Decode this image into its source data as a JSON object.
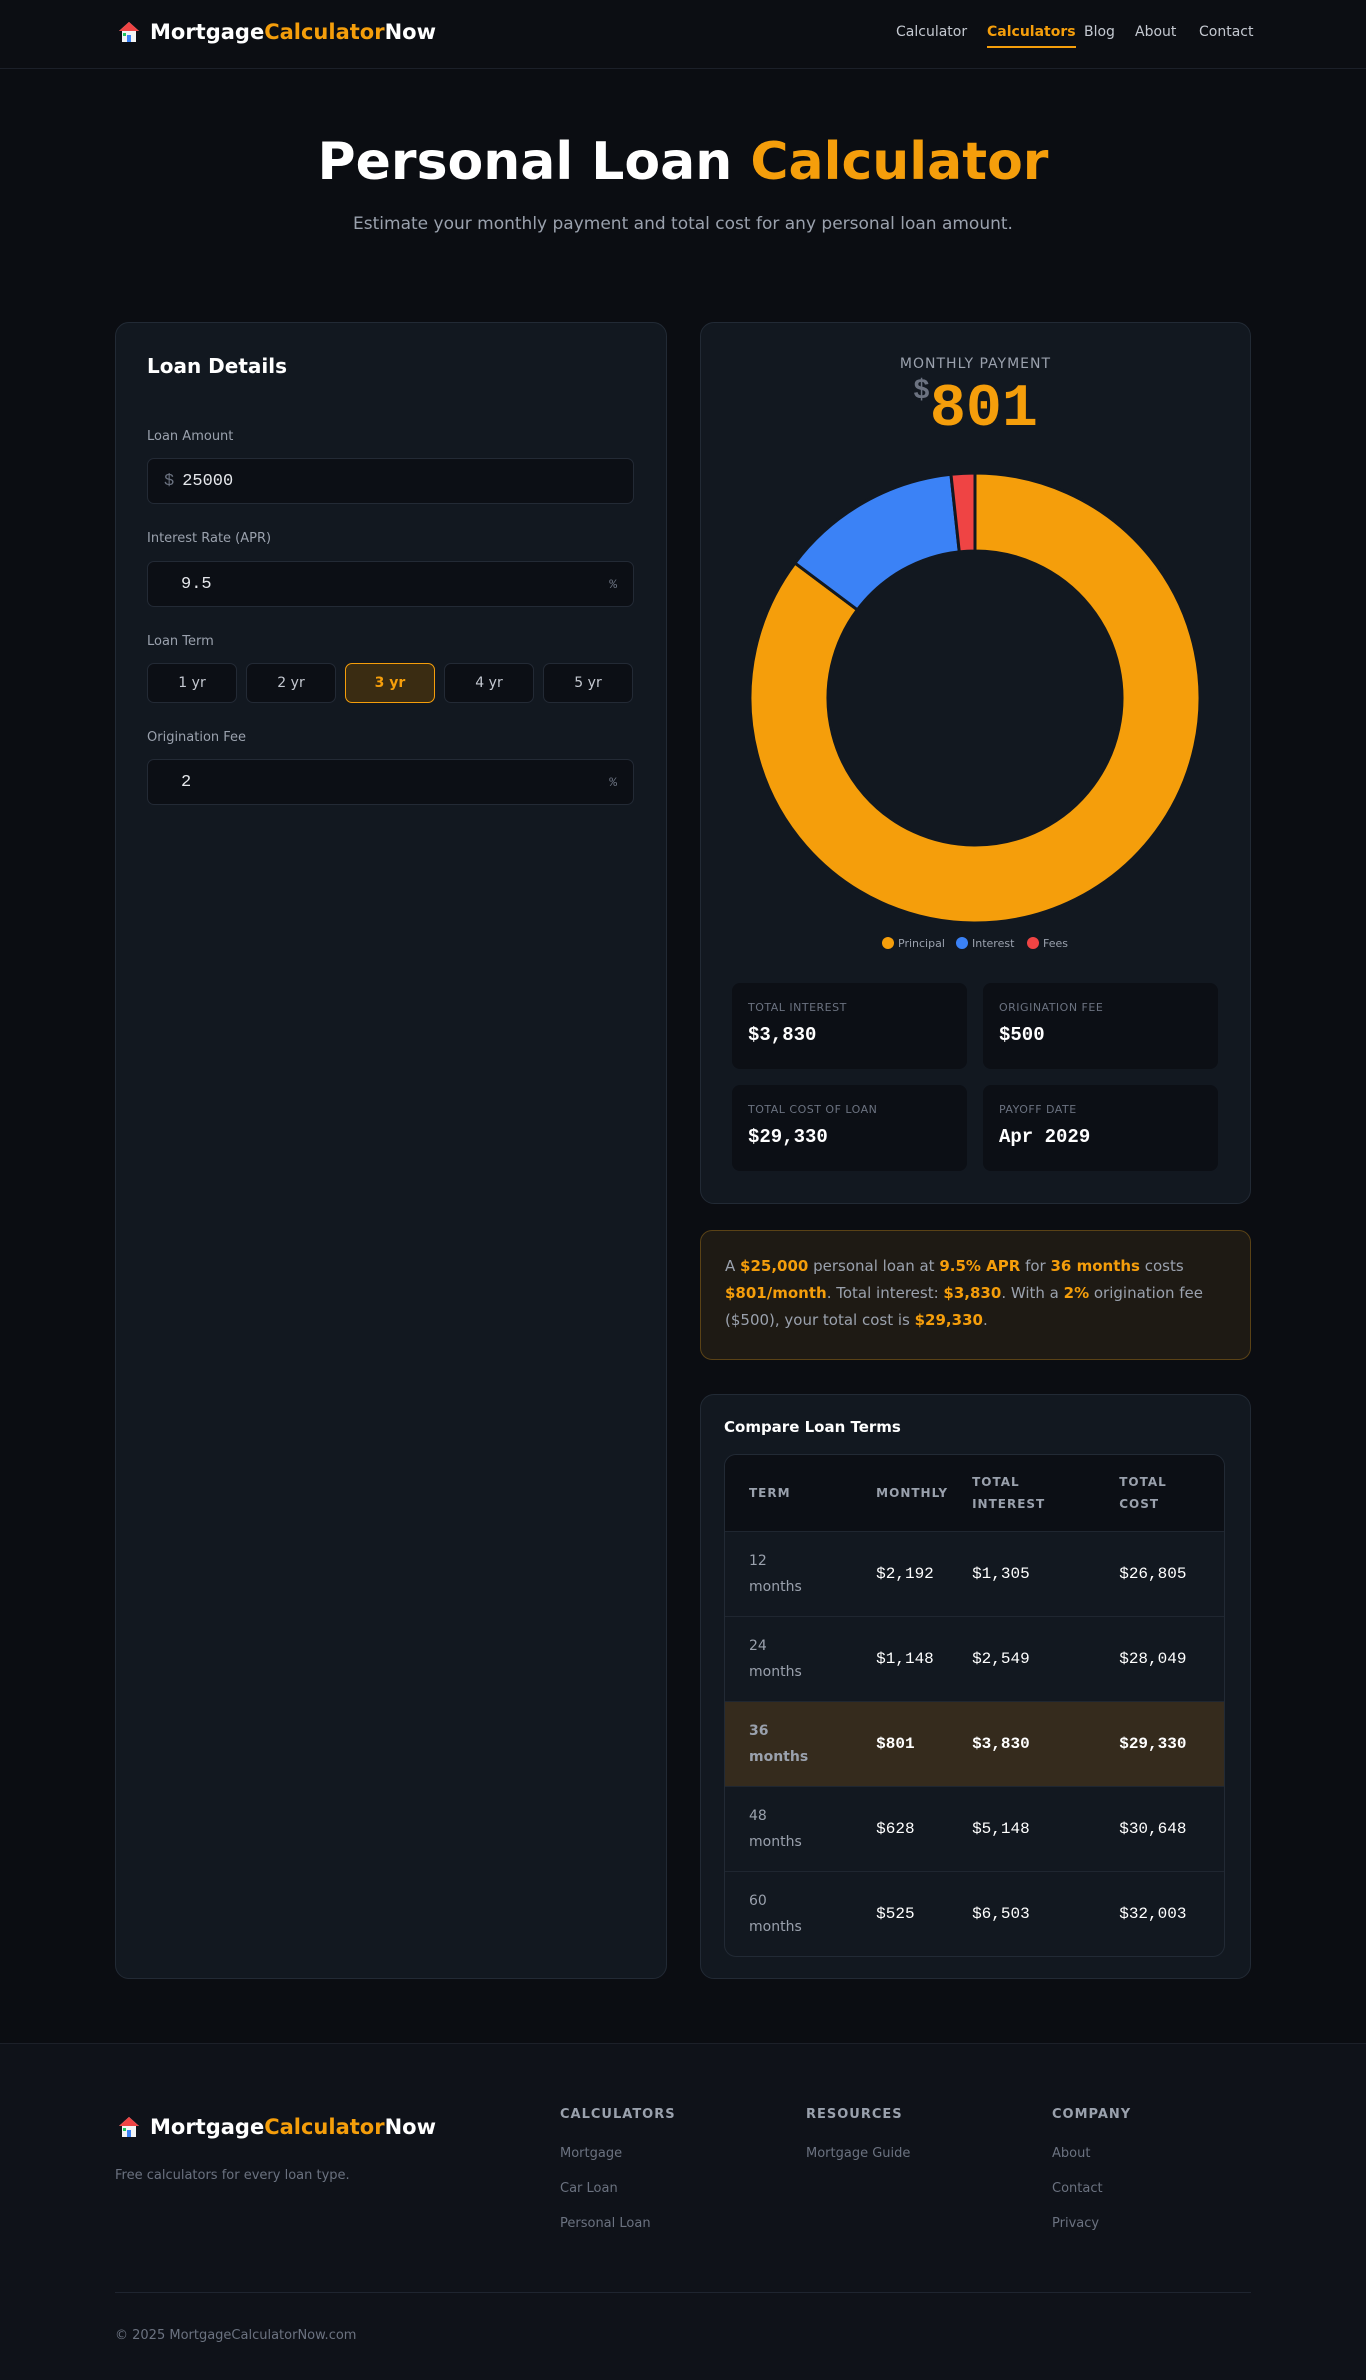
{
  "header": {
    "logo": {
      "a": "Mortgage",
      "b": "Calculator",
      "c": "Now"
    },
    "nav": [
      "Calculator",
      "Calculators",
      "Blog",
      "About",
      "Contact"
    ],
    "active_nav": 1
  },
  "hero": {
    "title": "Personal Loan",
    "title_accent": "Calculator",
    "subtitle": "Estimate your monthly payment and total cost for any personal loan amount."
  },
  "form": {
    "title": "Loan Details",
    "amount_label": "Loan Amount",
    "amount_prefix": "$",
    "amount": "25000",
    "rate_label": "Interest Rate (APR)",
    "rate": "9.5",
    "rate_suffix": "%",
    "term_label": "Loan Term",
    "terms": [
      "1 yr",
      "2 yr",
      "3 yr",
      "4 yr",
      "5 yr"
    ],
    "selected_term": 2,
    "fee_label": "Origination Fee",
    "fee": "2",
    "fee_suffix": "%"
  },
  "results": {
    "monthly_label": "MONTHLY PAYMENT",
    "currency": "$",
    "monthly": "801",
    "stats": [
      {
        "label": "TOTAL INTEREST",
        "value": "$3,830"
      },
      {
        "label": "ORIGINATION FEE",
        "value": "$500"
      },
      {
        "label": "TOTAL COST OF LOAN",
        "value": "$29,330"
      },
      {
        "label": "PAYOFF DATE",
        "value": "Apr 2029"
      }
    ]
  },
  "chart_data": {
    "type": "pie",
    "donut": true,
    "categories": [
      "Principal",
      "Interest",
      "Fees"
    ],
    "values": [
      25000,
      3830,
      500
    ],
    "colors": [
      "#f59e0b",
      "#3b82f6",
      "#ef4444"
    ]
  },
  "summary": {
    "parts": [
      "A ",
      "$25,000",
      " personal loan at ",
      "9.5% APR",
      " for ",
      "36 months",
      " costs ",
      "$801/month",
      ". Total interest: ",
      "$3,830",
      ". With a ",
      "2%",
      " origination fee ($500), your total cost is ",
      "$29,330",
      "."
    ]
  },
  "compare": {
    "title": "Compare Loan Terms",
    "columns": [
      "TERM",
      "MONTHLY",
      "TOTAL INTEREST",
      "TOTAL COST"
    ],
    "rows": [
      [
        "12 months",
        "$2,192",
        "$1,305",
        "$26,805"
      ],
      [
        "24 months",
        "$1,148",
        "$2,549",
        "$28,049"
      ],
      [
        "36 months",
        "$801",
        "$3,830",
        "$29,330"
      ],
      [
        "48 months",
        "$628",
        "$5,148",
        "$30,648"
      ],
      [
        "60 months",
        "$525",
        "$6,503",
        "$32,003"
      ]
    ],
    "highlighted_row": 2
  },
  "footer": {
    "tagline": "Free calculators for every loan type.",
    "columns": [
      {
        "heading": "CALCULATORS",
        "links": [
          "Mortgage",
          "Car Loan",
          "Personal Loan"
        ]
      },
      {
        "heading": "RESOURCES",
        "links": [
          "Mortgage Guide"
        ]
      },
      {
        "heading": "COMPANY",
        "links": [
          "About",
          "Contact",
          "Privacy"
        ]
      }
    ],
    "copyright": "© 2025 MortgageCalculatorNow.com"
  }
}
